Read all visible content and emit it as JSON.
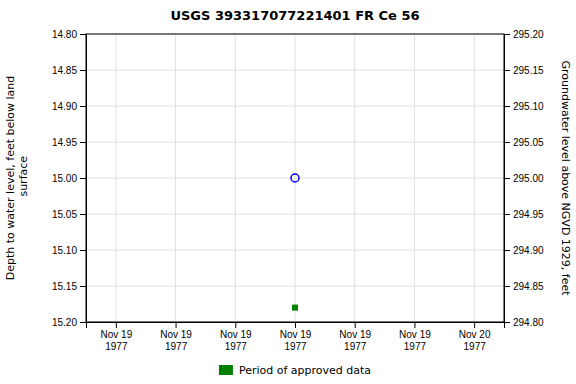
{
  "chart_data": {
    "type": "scatter",
    "title": "USGS 393317077221401 FR Ce  56",
    "y_label": "Depth to water level, feet below land\n surface",
    "y2_label": "Groundwater level above NGVD 1929, feet",
    "categories": [
      "Nov 19\n1977",
      "Nov 19\n1977",
      "Nov 19\n1977",
      "Nov 19\n1977",
      "Nov 19\n1977",
      "Nov 19\n1977",
      "Nov 20\n1977"
    ],
    "series": [
      {
        "color": "#0000ff",
        "marker": "open-circle",
        "values": [
          null,
          null,
          null,
          15.0,
          null,
          null,
          null
        ]
      },
      {
        "name": "Period of approved data",
        "color": "#008000",
        "marker": "square",
        "values": [
          null,
          null,
          null,
          15.18,
          null,
          null,
          null
        ]
      }
    ],
    "ylim": [
      15.2,
      14.8
    ],
    "yticks": [
      {
        "value": 14.8,
        "label": "14.80"
      },
      {
        "value": 14.85,
        "label": "14.85"
      },
      {
        "value": 14.9,
        "label": "14.90"
      },
      {
        "value": 14.95,
        "label": "14.95"
      },
      {
        "value": 15.0,
        "label": "15.00"
      },
      {
        "value": 15.05,
        "label": "15.05"
      },
      {
        "value": 15.1,
        "label": "15.10"
      },
      {
        "value": 15.15,
        "label": "15.15"
      },
      {
        "value": 15.2,
        "label": "15.20"
      }
    ],
    "y2lim": [
      294.8,
      295.2
    ],
    "y2ticks": [
      {
        "value": 295.2,
        "label": "295.20"
      },
      {
        "value": 295.15,
        "label": "295.15"
      },
      {
        "value": 295.1,
        "label": "295.10"
      },
      {
        "value": 295.05,
        "label": "295.05"
      },
      {
        "value": 295.0,
        "label": "295.00"
      },
      {
        "value": 294.95,
        "label": "294.95"
      },
      {
        "value": 294.9,
        "label": "294.90"
      },
      {
        "value": 294.85,
        "label": "294.85"
      },
      {
        "value": 294.8,
        "label": "294.80"
      }
    ],
    "grid": true,
    "legend": "bottom"
  }
}
